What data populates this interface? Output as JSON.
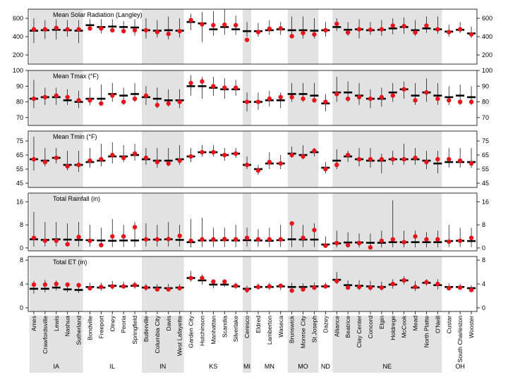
{
  "chart_data": {
    "type": "scatter",
    "description_note": "Multi-panel dot/range plot by location; black bar = long-term mean with whisker range, red dot = observed value",
    "stations": [
      "Ames",
      "Crawfordsville",
      "Lewis",
      "Nashua",
      "Sutherland",
      "Bondville",
      "Freeport",
      "Olney",
      "Peoria",
      "Springfield",
      "Butlerville",
      "Columbia City",
      "Davis",
      "West Lafayette",
      "Garden City",
      "Hutchinson",
      "Manhattan",
      "Scandia",
      "Silverlake",
      "Ceresco",
      "Eldred",
      "Lamberton",
      "Waseca",
      "Brunswick",
      "Monroe City",
      "St Joseph",
      "Dazey",
      "Alliance",
      "Beatrice",
      "Clay Center",
      "Concord",
      "Elgin",
      "Holdrege",
      "McCook",
      "Mead",
      "North Platte",
      "O'Neill",
      "Custar",
      "South Charleston",
      "Wooster"
    ],
    "states": [
      {
        "name": "IA",
        "start": 0,
        "end": 4,
        "shaded": true
      },
      {
        "name": "IL",
        "start": 5,
        "end": 9,
        "shaded": false
      },
      {
        "name": "IN",
        "start": 10,
        "end": 13,
        "shaded": true
      },
      {
        "name": "KS",
        "start": 14,
        "end": 18,
        "shaded": false
      },
      {
        "name": "MI",
        "start": 19,
        "end": 19,
        "shaded": true
      },
      {
        "name": "MN",
        "start": 20,
        "end": 22,
        "shaded": false
      },
      {
        "name": "MO",
        "start": 23,
        "end": 25,
        "shaded": true
      },
      {
        "name": "ND",
        "start": 26,
        "end": 26,
        "shaded": false
      },
      {
        "name": "NE",
        "start": 27,
        "end": 36,
        "shaded": true
      },
      {
        "name": "OH",
        "start": 37,
        "end": 39,
        "shaded": false
      }
    ],
    "colors": {
      "observed": "#e8141b",
      "shade": "#e2e2e2",
      "mean": "#000000"
    },
    "panels": [
      {
        "title": "Mean Solar Radiation (Langley)",
        "ylim": [
          100,
          700
        ],
        "ticks": [
          200,
          400,
          600
        ],
        "mean": [
          465,
          470,
          475,
          470,
          465,
          525,
          505,
          510,
          505,
          500,
          470,
          465,
          470,
          465,
          560,
          545,
          480,
          505,
          480,
          460,
          460,
          470,
          480,
          470,
          470,
          465,
          470,
          505,
          475,
          480,
          470,
          475,
          490,
          505,
          470,
          490,
          480,
          455,
          475,
          435
        ],
        "low": [
          330,
          375,
          370,
          400,
          330,
          470,
          435,
          455,
          460,
          410,
          380,
          390,
          370,
          390,
          470,
          340,
          410,
          420,
          420,
          400,
          400,
          420,
          420,
          410,
          380,
          380,
          400,
          460,
          410,
          380,
          420,
          410,
          425,
          430,
          410,
          440,
          430,
          400,
          440,
          385
        ],
        "high": [
          600,
          580,
          590,
          580,
          580,
          590,
          590,
          590,
          570,
          590,
          600,
          580,
          620,
          600,
          650,
          670,
          680,
          700,
          630,
          560,
          550,
          580,
          560,
          620,
          620,
          600,
          560,
          600,
          560,
          590,
          560,
          580,
          600,
          610,
          580,
          620,
          620,
          530,
          560,
          510
        ],
        "obs": [
          480,
          480,
          495,
          480,
          480,
          490,
          490,
          470,
          460,
          470,
          470,
          450,
          430,
          460,
          580,
          535,
          525,
          530,
          525,
          365,
          450,
          485,
          490,
          405,
          440,
          425,
          470,
          540,
          445,
          480,
          475,
          480,
          520,
          515,
          445,
          520,
          480,
          450,
          480,
          425
        ]
      },
      {
        "title": "Mean Tmax (°F)",
        "ylim": [
          65,
          100
        ],
        "ticks": [
          70,
          80,
          90,
          100
        ],
        "mean": [
          82,
          83,
          83,
          81,
          80,
          82,
          82,
          85,
          84,
          85,
          83,
          82,
          81,
          81,
          90,
          90,
          89,
          88,
          88,
          80,
          80,
          81,
          81,
          85,
          85,
          84,
          79,
          86,
          86,
          84,
          82,
          82,
          86,
          88,
          84,
          86,
          84,
          83,
          84,
          83
        ],
        "low": [
          76,
          78,
          78,
          78,
          76,
          78,
          78,
          80,
          78,
          80,
          78,
          76,
          77,
          76,
          84,
          82,
          84,
          82,
          84,
          74,
          75,
          77,
          76,
          80,
          80,
          80,
          74,
          80,
          80,
          78,
          76,
          77,
          80,
          82,
          78,
          80,
          78,
          78,
          78,
          78
        ],
        "high": [
          94,
          89,
          89,
          88,
          87,
          89,
          91,
          92,
          89,
          92,
          90,
          89,
          88,
          88,
          97,
          96,
          96,
          95,
          94,
          86,
          86,
          87,
          86,
          92,
          92,
          92,
          85,
          96,
          93,
          92,
          88,
          89,
          92,
          93,
          92,
          95,
          92,
          90,
          91,
          90
        ],
        "obs": [
          82,
          83,
          84,
          83,
          81,
          81,
          79,
          84,
          80,
          82,
          84,
          78,
          79,
          80,
          92,
          93,
          90,
          89,
          89,
          80,
          80,
          82,
          83,
          83,
          82,
          81,
          80,
          85,
          82,
          83,
          82,
          83,
          84,
          88,
          81,
          86,
          82,
          81,
          80,
          80
        ]
      },
      {
        "title": "Mean Tmin (°F)",
        "ylim": [
          42,
          82
        ],
        "ticks": [
          45,
          55,
          65,
          75
        ],
        "mean": [
          62,
          61,
          63,
          58,
          58,
          60,
          61,
          64,
          64,
          65,
          62,
          61,
          61,
          62,
          64,
          67,
          67,
          65,
          66,
          58,
          55,
          59,
          59,
          66,
          65,
          67,
          56,
          61,
          64,
          62,
          61,
          61,
          62,
          62,
          62,
          61,
          59,
          60,
          60,
          60
        ],
        "low": [
          54,
          57,
          59,
          54,
          53,
          56,
          57,
          59,
          60,
          61,
          58,
          56,
          57,
          58,
          60,
          64,
          64,
          61,
          63,
          55,
          51,
          55,
          55,
          63,
          62,
          64,
          52,
          55,
          60,
          57,
          56,
          52,
          58,
          58,
          58,
          55,
          52,
          56,
          56,
          56
        ],
        "high": [
          78,
          70,
          70,
          68,
          68,
          70,
          73,
          74,
          72,
          73,
          70,
          70,
          70,
          72,
          70,
          72,
          72,
          70,
          70,
          64,
          58,
          67,
          65,
          71,
          72,
          70,
          60,
          69,
          68,
          70,
          70,
          66,
          68,
          73,
          70,
          68,
          68,
          70,
          70,
          70
        ],
        "obs": [
          62,
          60,
          63,
          57,
          58,
          61,
          62,
          65,
          63,
          66,
          63,
          60,
          59,
          61,
          64,
          67,
          67,
          65,
          66,
          58,
          54,
          60,
          59,
          65,
          64,
          68,
          55,
          58,
          65,
          62,
          62,
          62,
          62,
          62,
          63,
          60,
          62,
          62,
          61,
          59
        ]
      },
      {
        "title": "Total Rainfall (in)",
        "ylim": [
          -1,
          19
        ],
        "ticks": [
          0,
          8,
          16
        ],
        "mean": [
          3.0,
          2.8,
          3.0,
          2.9,
          2.8,
          2.7,
          2.6,
          2.5,
          2.6,
          2.6,
          2.9,
          2.9,
          3.0,
          2.8,
          2.0,
          2.6,
          2.6,
          2.7,
          2.6,
          2.7,
          2.6,
          2.5,
          2.7,
          3.0,
          2.9,
          2.9,
          1.2,
          1.6,
          1.9,
          1.9,
          1.8,
          1.8,
          2.0,
          2.0,
          2.0,
          2.0,
          2.0,
          2.4,
          2.5,
          2.4
        ],
        "low": [
          0.5,
          0.5,
          0.5,
          0.5,
          0.5,
          0.5,
          0.5,
          0.3,
          0.3,
          0.3,
          0.5,
          0.5,
          0.5,
          0.5,
          0.2,
          0.3,
          0.3,
          0.3,
          0.3,
          0.5,
          0.5,
          0.3,
          0.3,
          0.3,
          0.3,
          0.3,
          0.2,
          0.2,
          0.2,
          0.2,
          0.2,
          0.2,
          0.2,
          0.2,
          0.2,
          0.2,
          0.2,
          0.3,
          0.3,
          0.3
        ],
        "high": [
          12.5,
          9.0,
          9.0,
          8.5,
          9.0,
          8.0,
          7.0,
          10.0,
          8.0,
          9.0,
          8.5,
          8.0,
          9.0,
          8.0,
          10.0,
          10.5,
          7.0,
          7.0,
          8.0,
          7.0,
          6.5,
          7.0,
          8.0,
          9.0,
          8.0,
          8.5,
          4.0,
          6.0,
          5.5,
          5.0,
          5.0,
          6.0,
          16.5,
          6.0,
          6.0,
          5.5,
          6.0,
          8.0,
          7.0,
          7.0
        ],
        "obs": [
          3.5,
          2.5,
          2.5,
          1.3,
          3.8,
          2.5,
          1.0,
          4.0,
          4.0,
          7.2,
          3.0,
          3.0,
          3.1,
          4.2,
          2.5,
          3.0,
          3.0,
          3.1,
          3.0,
          3.5,
          3.0,
          3.0,
          3.0,
          8.5,
          3.5,
          6.2,
          0.8,
          1.7,
          1.0,
          1.7,
          0.2,
          2.5,
          3.0,
          2.0,
          4.0,
          3.0,
          3.0,
          2.2,
          2.5,
          3.5
        ]
      },
      {
        "title": "Total ET (in)",
        "ylim": [
          -0.6,
          8.6
        ],
        "ticks": [
          0,
          4,
          8
        ],
        "mean": [
          3.2,
          3.2,
          3.4,
          3.1,
          3.0,
          3.5,
          3.4,
          3.7,
          3.6,
          3.7,
          3.4,
          3.4,
          3.3,
          3.4,
          5.0,
          4.6,
          3.9,
          3.9,
          3.6,
          3.2,
          3.5,
          3.5,
          3.6,
          3.5,
          3.5,
          3.6,
          3.6,
          4.7,
          3.8,
          3.7,
          3.6,
          3.5,
          3.9,
          4.6,
          3.4,
          4.2,
          3.8,
          3.5,
          3.5,
          3.3
        ],
        "low": [
          2.4,
          2.6,
          2.9,
          2.6,
          2.5,
          2.9,
          2.9,
          3.1,
          3.2,
          3.2,
          2.9,
          2.8,
          2.8,
          3.0,
          4.4,
          3.9,
          3.3,
          3.5,
          3.2,
          2.5,
          3.1,
          3.0,
          3.0,
          3.0,
          3.0,
          3.0,
          3.2,
          4.0,
          3.2,
          3.0,
          2.9,
          2.9,
          3.2,
          3.9,
          2.8,
          3.7,
          3.1,
          3.0,
          3.0,
          2.9
        ],
        "high": [
          4.5,
          4.7,
          4.6,
          4.2,
          4.2,
          4.2,
          4.2,
          4.5,
          4.4,
          4.4,
          4.0,
          4.0,
          4.0,
          4.0,
          6.2,
          5.6,
          4.5,
          4.3,
          4.2,
          3.7,
          4.1,
          4.2,
          4.1,
          4.2,
          4.1,
          4.2,
          4.2,
          6.0,
          4.6,
          4.6,
          4.5,
          4.4,
          4.8,
          5.3,
          4.5,
          4.8,
          4.8,
          4.1,
          4.0,
          3.8
        ],
        "obs": [
          3.9,
          3.9,
          4.0,
          3.9,
          3.8,
          3.3,
          3.5,
          3.6,
          3.6,
          3.8,
          3.4,
          3.1,
          3.1,
          3.3,
          5.0,
          5.0,
          4.4,
          4.4,
          3.7,
          3.0,
          3.5,
          3.6,
          3.7,
          2.9,
          3.1,
          3.4,
          3.6,
          4.5,
          3.4,
          3.5,
          3.4,
          3.4,
          4.0,
          4.6,
          3.5,
          4.3,
          4.0,
          3.3,
          3.4,
          3.0
        ]
      }
    ]
  }
}
